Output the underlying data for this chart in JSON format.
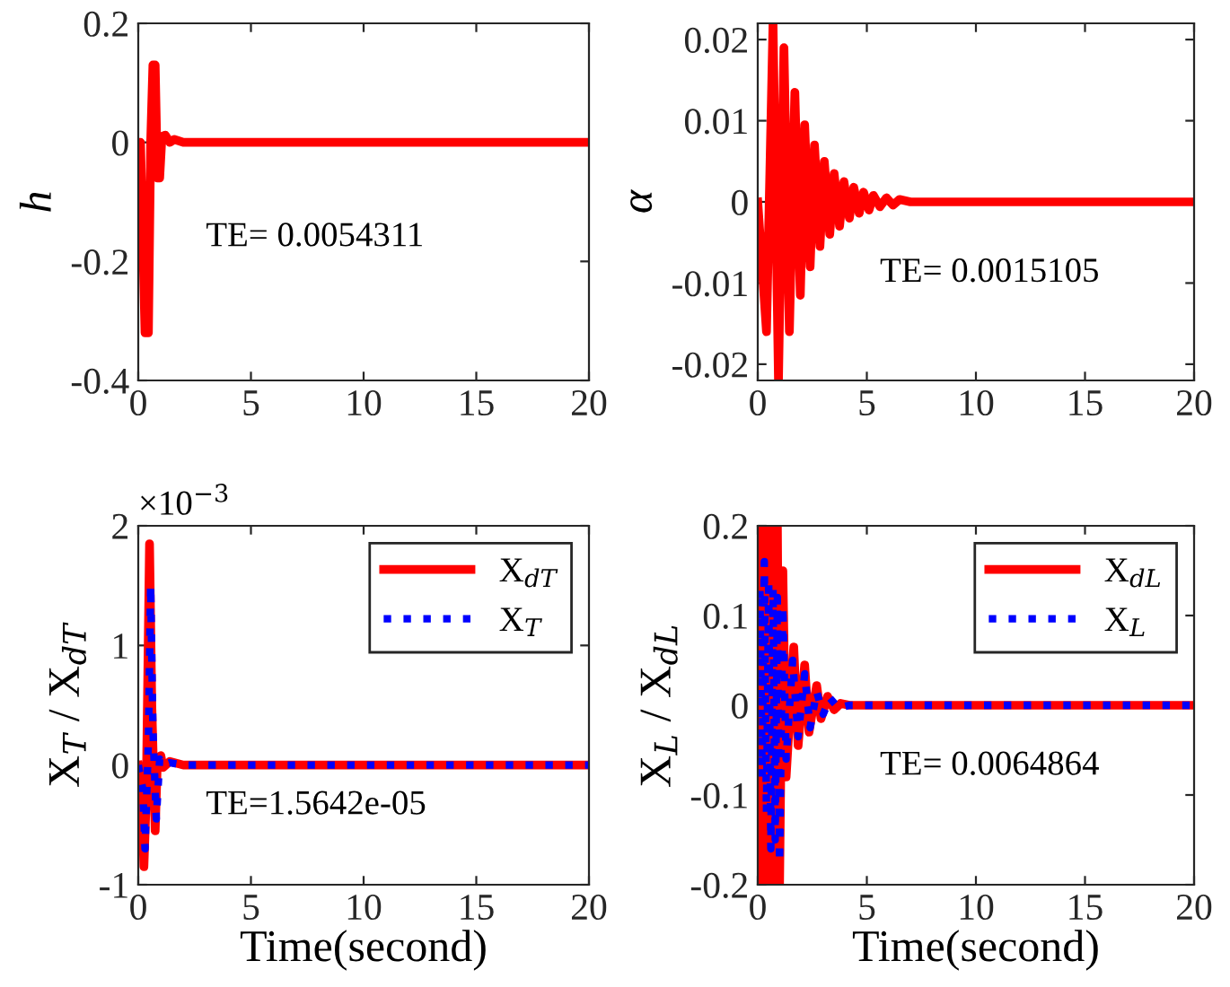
{
  "chart_data": [
    {
      "type": "line",
      "ylabel": "h",
      "xlim": [
        0,
        20
      ],
      "xticks": [
        0,
        5,
        10,
        15,
        20
      ],
      "ylim": [
        -0.4,
        0.2
      ],
      "yticks": [
        -0.4,
        -0.2,
        0,
        0.2
      ],
      "grid": false,
      "legend": false,
      "annotations": [
        "TE= 0.0054311"
      ],
      "series": [
        {
          "color": "#ff0000",
          "line_style": "solid",
          "x": [
            0,
            0.1,
            0.3,
            0.45,
            0.55,
            0.65,
            0.75,
            0.85,
            0.95,
            1.05,
            1.2,
            1.4,
            1.6,
            2,
            20
          ],
          "values": [
            0,
            0,
            -0.32,
            -0.32,
            0,
            0.13,
            0.13,
            -0.06,
            -0.06,
            0.01,
            0.012,
            0,
            0.005,
            0,
            0
          ]
        }
      ]
    },
    {
      "type": "line",
      "ylabel": "α",
      "xlim": [
        0,
        20
      ],
      "xticks": [
        0,
        5,
        10,
        15,
        20
      ],
      "ylim": [
        -0.022,
        0.022
      ],
      "yticks": [
        -0.02,
        -0.01,
        0,
        0.01,
        0.02
      ],
      "grid": false,
      "legend": false,
      "annotations": [
        "TE= 0.0015105"
      ],
      "series": [
        {
          "color": "#ff0000",
          "line_style": "solid",
          "x": [
            0,
            0.4,
            0.7,
            0.95,
            1.2,
            1.45,
            1.7,
            1.95,
            2.15,
            2.4,
            2.6,
            2.85,
            3.05,
            3.3,
            3.5,
            3.75,
            3.95,
            4.2,
            4.4,
            4.65,
            4.85,
            5.1,
            5.3,
            5.6,
            5.9,
            6.2,
            6.5,
            7,
            20
          ],
          "values": [
            0,
            -0.016,
            0.022,
            -0.022,
            0.019,
            -0.016,
            0.0135,
            -0.0115,
            0.0095,
            -0.008,
            0.007,
            -0.0055,
            0.005,
            -0.004,
            0.0035,
            -0.003,
            0.0025,
            -0.002,
            0.0018,
            -0.0014,
            0.0012,
            -0.001,
            0.0008,
            -0.0006,
            0.0005,
            -0.0004,
            0.0003,
            0,
            0
          ]
        }
      ]
    },
    {
      "type": "line",
      "ylabel": "X$_{T}$ / X$_{dT}$",
      "xlabel": "Time(second)",
      "xlim": [
        0,
        20
      ],
      "xticks": [
        0,
        5,
        10,
        15,
        20
      ],
      "ylim": [
        -1,
        2
      ],
      "yticks": [
        -1,
        0,
        1,
        2
      ],
      "grid": false,
      "legend": "top right",
      "annotations": [
        "×10$^{−3}$",
        "TE=1.5642e-05"
      ],
      "series": [
        {
          "name": "X$_{dT}$",
          "color": "#ff0000",
          "line_style": "solid",
          "x": [
            0,
            0.15,
            0.25,
            0.35,
            0.5,
            0.6,
            0.75,
            0.85,
            1.0,
            1.1,
            1.4,
            2,
            20
          ],
          "values": [
            0,
            -0.2,
            -0.85,
            -0.3,
            1.85,
            0.5,
            -0.55,
            0.05,
            0.08,
            -0.02,
            0.03,
            0,
            0
          ]
        },
        {
          "name": "X$_{T}$",
          "color": "#0000ff",
          "line_style": "dotted",
          "x": [
            0,
            0.2,
            0.3,
            0.45,
            0.55,
            0.65,
            0.8,
            0.95,
            1.1,
            1.4,
            2,
            20
          ],
          "values": [
            0,
            -0.2,
            -0.7,
            0.2,
            1.5,
            0.3,
            -0.45,
            0.05,
            0,
            0.02,
            0,
            0
          ]
        }
      ]
    },
    {
      "type": "line",
      "ylabel": "X$_{L}$ / X$_{dL}$",
      "xlabel": "Time(second)",
      "xlim": [
        0,
        20
      ],
      "xticks": [
        0,
        5,
        10,
        15,
        20
      ],
      "ylim": [
        -0.2,
        0.2
      ],
      "yticks": [
        -0.2,
        -0.1,
        0,
        0.1,
        0.2
      ],
      "grid": false,
      "legend": "top right",
      "annotations": [
        "TE= 0.0064864"
      ],
      "series": [
        {
          "name": "X$_{dL}$",
          "color": "#ff0000",
          "line_style": "solid",
          "x": [
            0,
            0.1,
            0.2,
            0.3,
            0.4,
            0.5,
            0.6,
            0.7,
            0.8,
            0.9,
            1.0,
            1.15,
            1.3,
            1.65,
            1.85,
            2.15,
            2.35,
            2.7,
            2.9,
            3.2,
            3.5,
            3.8,
            4.2,
            20
          ],
          "values": [
            0,
            0.2,
            -0.2,
            0.2,
            -0.2,
            0.2,
            -0.2,
            0.2,
            -0.2,
            0.2,
            -0.2,
            0.15,
            -0.08,
            0.065,
            -0.045,
            0.045,
            -0.03,
            0.022,
            -0.015,
            0.01,
            -0.005,
            0.002,
            0,
            0
          ]
        },
        {
          "name": "X$_{L}$",
          "color": "#0000ff",
          "line_style": "dotted",
          "x": [
            0,
            0.1,
            0.2,
            0.3,
            0.4,
            0.5,
            0.6,
            0.7,
            0.8,
            0.9,
            1.0,
            1.15,
            1.3,
            1.6,
            1.85,
            2.15,
            2.4,
            2.7,
            3.0,
            3.3,
            3.7,
            4.2,
            20
          ],
          "values": [
            0,
            0.13,
            -0.08,
            0.16,
            -0.12,
            0.14,
            -0.16,
            0.13,
            -0.15,
            0.12,
            -0.175,
            0.11,
            -0.06,
            0.05,
            -0.035,
            0.035,
            -0.025,
            0.015,
            -0.01,
            0.008,
            -0.003,
            0,
            0
          ]
        }
      ]
    }
  ]
}
